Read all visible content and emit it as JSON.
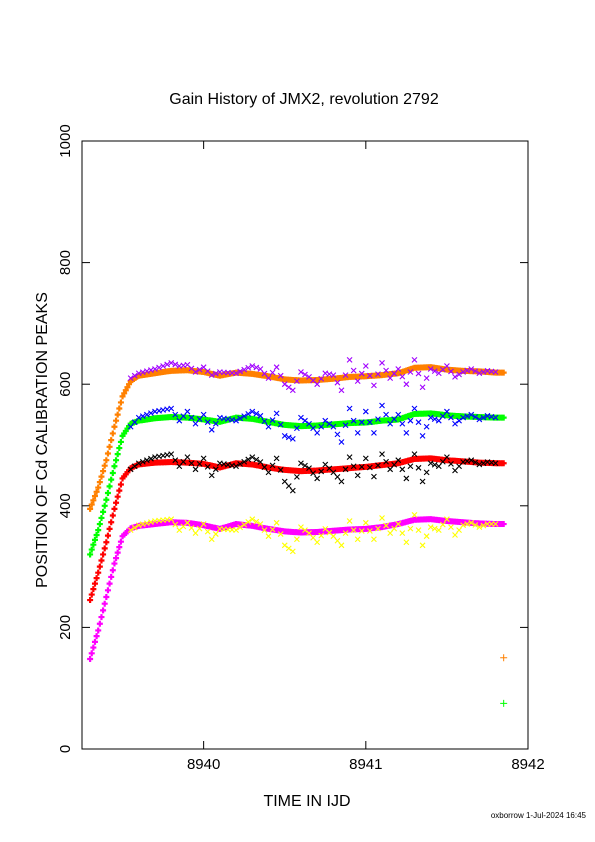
{
  "chart_data": {
    "type": "scatter",
    "title": "Gain History of JMX2, revolution 2792",
    "xlabel": "TIME IN IJD",
    "ylabel": "POSITION OF Cd CALIBRATION PEAKS",
    "xlim": [
      8939.25,
      8942.0
    ],
    "ylim": [
      0,
      1000
    ],
    "x_ticks": [
      "8940",
      "8941",
      "8942"
    ],
    "y_ticks": [
      "0",
      "200",
      "400",
      "600",
      "800",
      "1000"
    ],
    "grid": false,
    "legend": "none",
    "colors": {
      "orange": "#ff8000",
      "purple": "#a000ff",
      "green": "#00ff00",
      "blue": "#0000ff",
      "red": "#ff0000",
      "black": "#000000",
      "magenta": "#ff00ff",
      "yellow": "#ffff00"
    },
    "series": [
      {
        "color": "#ff8000",
        "marker": "+",
        "style": "smoothed",
        "x": [
          8939.3,
          8939.35,
          8939.4,
          8939.45,
          8939.5,
          8939.55,
          8939.6,
          8939.7,
          8939.8,
          8939.9,
          8940.0,
          8940.1,
          8940.2,
          8940.3,
          8940.4,
          8940.5,
          8940.6,
          8940.7,
          8940.8,
          8940.9,
          8941.0,
          8941.1,
          8941.2,
          8941.3,
          8941.4,
          8941.5,
          8941.6,
          8941.7,
          8941.8,
          8941.85
        ],
        "y": [
          395,
          430,
          475,
          530,
          580,
          605,
          614,
          618,
          622,
          623,
          620,
          614,
          619,
          617,
          613,
          608,
          606,
          607,
          609,
          612,
          613,
          615,
          618,
          627,
          628,
          624,
          622,
          621,
          619,
          619
        ]
      },
      {
        "color": "#a000ff",
        "marker": "x",
        "style": "raw",
        "x": [
          8939.55,
          8939.6,
          8939.7,
          8939.8,
          8939.85,
          8939.9,
          8939.95,
          8940.0,
          8940.05,
          8940.1,
          8940.2,
          8940.3,
          8940.35,
          8940.4,
          8940.45,
          8940.5,
          8940.55,
          8940.6,
          8940.65,
          8940.7,
          8940.75,
          8940.8,
          8940.85,
          8940.9,
          8940.95,
          8941.0,
          8941.05,
          8941.1,
          8941.15,
          8941.2,
          8941.25,
          8941.3,
          8941.35,
          8941.4,
          8941.45,
          8941.5,
          8941.55,
          8941.6,
          8941.65,
          8941.7,
          8941.75,
          8941.8
        ],
        "y": [
          610,
          618,
          625,
          635,
          630,
          632,
          620,
          628,
          615,
          620,
          618,
          630,
          625,
          610,
          628,
          600,
          590,
          620,
          612,
          600,
          618,
          615,
          590,
          640,
          605,
          630,
          598,
          635,
          610,
          625,
          600,
          640,
          595,
          625,
          618,
          630,
          612,
          620,
          625,
          618,
          622,
          620
        ]
      },
      {
        "color": "#00ff00",
        "marker": "+",
        "style": "smoothed",
        "x": [
          8939.3,
          8939.35,
          8939.4,
          8939.45,
          8939.5,
          8939.55,
          8939.6,
          8939.7,
          8939.8,
          8939.9,
          8940.0,
          8940.1,
          8940.2,
          8940.3,
          8940.4,
          8940.5,
          8940.6,
          8940.7,
          8940.8,
          8940.9,
          8941.0,
          8941.1,
          8941.2,
          8941.3,
          8941.4,
          8941.5,
          8941.6,
          8941.7,
          8941.8,
          8941.85
        ],
        "y": [
          320,
          360,
          410,
          465,
          515,
          535,
          540,
          544,
          546,
          545,
          542,
          538,
          545,
          543,
          538,
          533,
          531,
          532,
          534,
          536,
          537,
          540,
          542,
          551,
          552,
          549,
          547,
          546,
          545,
          545
        ]
      },
      {
        "color": "#0000ff",
        "marker": "x",
        "style": "raw",
        "x": [
          8939.55,
          8939.6,
          8939.7,
          8939.8,
          8939.85,
          8939.9,
          8939.95,
          8940.0,
          8940.05,
          8940.1,
          8940.2,
          8940.3,
          8940.35,
          8940.4,
          8940.45,
          8940.5,
          8940.55,
          8940.6,
          8940.65,
          8940.7,
          8940.75,
          8940.8,
          8940.85,
          8940.9,
          8940.95,
          8941.0,
          8941.05,
          8941.1,
          8941.15,
          8941.2,
          8941.25,
          8941.3,
          8941.35,
          8941.4,
          8941.45,
          8941.5,
          8941.55,
          8941.6,
          8941.65,
          8941.7,
          8941.75,
          8941.8
        ],
        "y": [
          530,
          545,
          555,
          560,
          540,
          555,
          535,
          550,
          525,
          545,
          540,
          555,
          548,
          530,
          552,
          515,
          510,
          545,
          535,
          520,
          540,
          530,
          505,
          560,
          520,
          555,
          520,
          565,
          535,
          550,
          520,
          560,
          515,
          545,
          540,
          555,
          535,
          545,
          550,
          542,
          548,
          545
        ]
      },
      {
        "color": "#ff0000",
        "marker": "+",
        "style": "smoothed",
        "x": [
          8939.3,
          8939.35,
          8939.4,
          8939.45,
          8939.5,
          8939.55,
          8939.6,
          8939.7,
          8939.8,
          8939.9,
          8940.0,
          8940.1,
          8940.2,
          8940.3,
          8940.4,
          8940.5,
          8940.6,
          8940.7,
          8940.8,
          8940.9,
          8941.0,
          8941.1,
          8941.2,
          8941.3,
          8941.4,
          8941.5,
          8941.6,
          8941.7,
          8941.8,
          8941.85
        ],
        "y": [
          245,
          290,
          340,
          395,
          445,
          462,
          468,
          471,
          472,
          471,
          469,
          463,
          470,
          468,
          463,
          459,
          457,
          458,
          460,
          462,
          464,
          467,
          470,
          477,
          478,
          475,
          473,
          471,
          470,
          470
        ]
      },
      {
        "color": "#000000",
        "marker": "x",
        "style": "raw",
        "x": [
          8939.55,
          8939.6,
          8939.7,
          8939.8,
          8939.85,
          8939.9,
          8939.95,
          8940.0,
          8940.05,
          8940.1,
          8940.2,
          8940.3,
          8940.35,
          8940.4,
          8940.45,
          8940.5,
          8940.55,
          8940.6,
          8940.65,
          8940.7,
          8940.75,
          8940.8,
          8940.85,
          8940.9,
          8940.95,
          8941.0,
          8941.05,
          8941.1,
          8941.15,
          8941.2,
          8941.25,
          8941.3,
          8941.35,
          8941.4,
          8941.45,
          8941.5,
          8941.55,
          8941.6,
          8941.65,
          8941.7,
          8941.75,
          8941.8
        ],
        "y": [
          460,
          470,
          480,
          485,
          465,
          480,
          460,
          478,
          450,
          470,
          465,
          480,
          472,
          455,
          478,
          440,
          425,
          470,
          462,
          445,
          468,
          455,
          440,
          480,
          450,
          478,
          448,
          485,
          460,
          475,
          445,
          485,
          440,
          470,
          465,
          480,
          458,
          472,
          475,
          468,
          472,
          470
        ]
      },
      {
        "color": "#ff00ff",
        "marker": "+",
        "style": "smoothed",
        "x": [
          8939.3,
          8939.35,
          8939.4,
          8939.45,
          8939.5,
          8939.55,
          8939.6,
          8939.7,
          8939.8,
          8939.9,
          8940.0,
          8940.1,
          8940.2,
          8940.3,
          8940.4,
          8940.5,
          8940.6,
          8940.7,
          8940.8,
          8940.9,
          8941.0,
          8941.1,
          8941.2,
          8941.3,
          8941.4,
          8941.5,
          8941.6,
          8941.7,
          8941.8,
          8941.85
        ],
        "y": [
          148,
          195,
          250,
          305,
          350,
          363,
          367,
          370,
          373,
          372,
          368,
          362,
          370,
          367,
          362,
          358,
          356,
          357,
          359,
          361,
          362,
          365,
          370,
          377,
          378,
          375,
          373,
          371,
          370,
          370
        ]
      },
      {
        "color": "#ffff00",
        "marker": "x",
        "style": "raw",
        "x": [
          8939.55,
          8939.6,
          8939.7,
          8939.8,
          8939.85,
          8939.9,
          8939.95,
          8940.0,
          8940.05,
          8940.1,
          8940.2,
          8940.3,
          8940.35,
          8940.4,
          8940.45,
          8940.5,
          8940.55,
          8940.6,
          8940.65,
          8940.7,
          8940.75,
          8940.8,
          8940.85,
          8940.9,
          8940.95,
          8941.0,
          8941.05,
          8941.1,
          8941.15,
          8941.2,
          8941.25,
          8941.3,
          8941.35,
          8941.4,
          8941.45,
          8941.5,
          8941.55,
          8941.6,
          8941.65,
          8941.7,
          8941.75,
          8941.8
        ],
        "y": [
          360,
          368,
          375,
          378,
          360,
          372,
          355,
          370,
          345,
          362,
          360,
          378,
          370,
          350,
          372,
          335,
          325,
          365,
          355,
          340,
          362,
          350,
          335,
          375,
          345,
          372,
          345,
          380,
          355,
          370,
          340,
          385,
          335,
          365,
          360,
          378,
          352,
          368,
          372,
          365,
          370,
          370
        ]
      },
      {
        "color": "#ff8000",
        "marker": "+",
        "style": "outlier",
        "x": [
          8941.85
        ],
        "y": [
          150
        ]
      },
      {
        "color": "#00ff00",
        "marker": "+",
        "style": "outlier",
        "x": [
          8941.85
        ],
        "y": [
          75
        ]
      }
    ]
  },
  "footer": "oxborrow  1-Jul-2024 16:45"
}
